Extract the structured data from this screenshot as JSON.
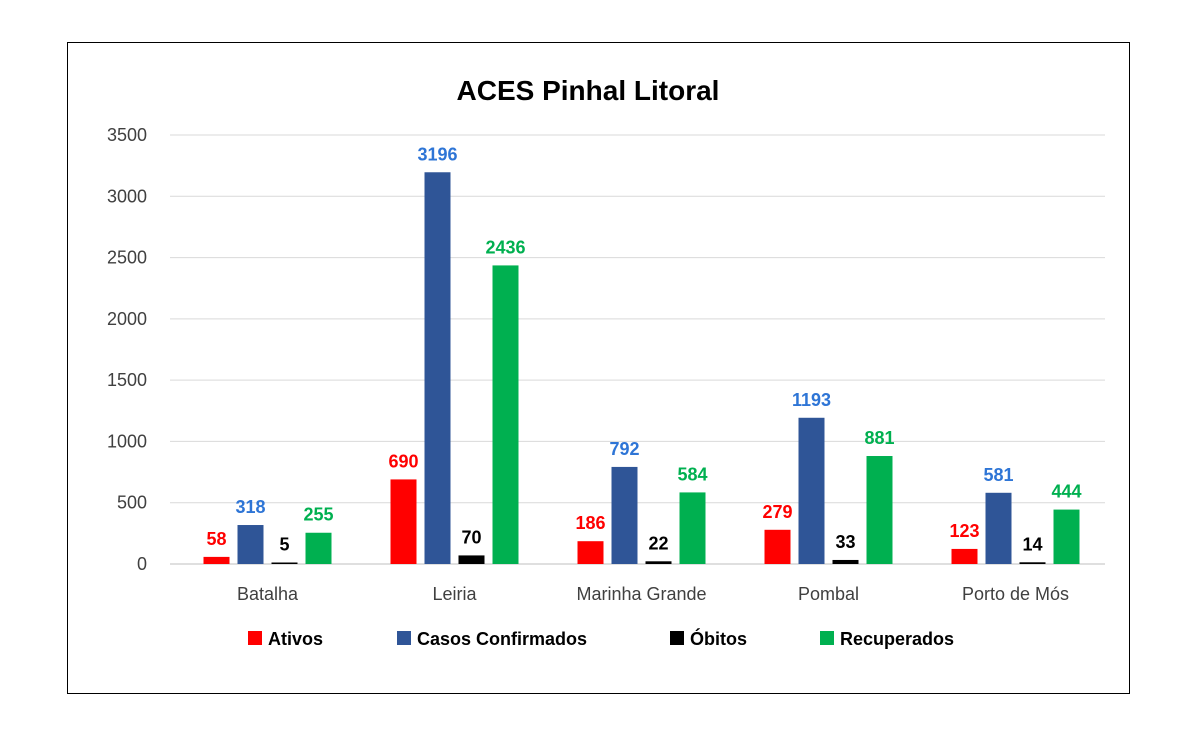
{
  "chart_data": {
    "type": "bar",
    "title": "ACES Pinhal Litoral",
    "xlabel": "",
    "ylabel": "",
    "ylim": [
      0,
      3500
    ],
    "yticks": [
      0,
      500,
      1000,
      1500,
      2000,
      2500,
      3000,
      3500
    ],
    "grid": true,
    "legend_position": "bottom",
    "categories": [
      "Batalha",
      "Leiria",
      "Marinha Grande",
      "Pombal",
      "Porto de Mós"
    ],
    "series": [
      {
        "name": "Ativos",
        "color": "#ff0000",
        "label_color": "#ff0000",
        "values": [
          58,
          690,
          186,
          279,
          123
        ]
      },
      {
        "name": "Casos Confirmados",
        "color": "#2f5597",
        "label_color": "#2e75d6",
        "values": [
          318,
          3196,
          792,
          1193,
          581
        ]
      },
      {
        "name": "Óbitos",
        "color": "#000000",
        "label_color": "#000000",
        "values": [
          5,
          70,
          22,
          33,
          14
        ]
      },
      {
        "name": "Recuperados",
        "color": "#00b050",
        "label_color": "#00b050",
        "values": [
          255,
          2436,
          584,
          881,
          444
        ]
      }
    ]
  }
}
